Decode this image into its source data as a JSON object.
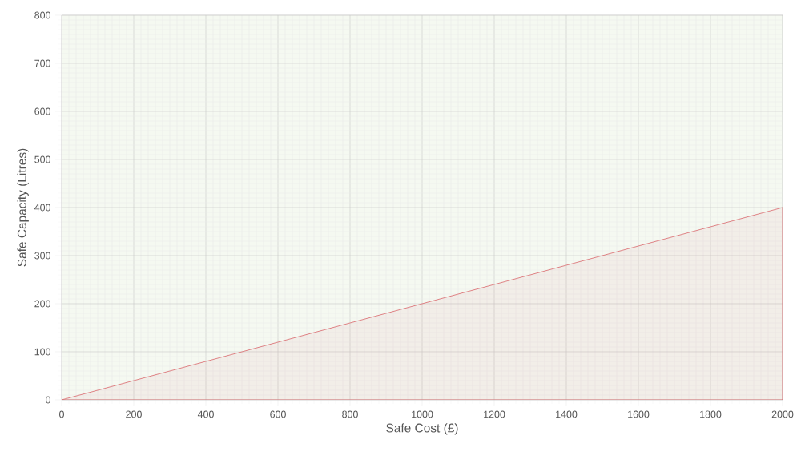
{
  "chart_data": {
    "type": "area",
    "xlabel": "Safe Cost (£)",
    "ylabel": "Safe Capacity (Litres)",
    "x": [
      0,
      2000
    ],
    "series": [
      {
        "color": "#d9666b",
        "values": [
          0,
          400
        ]
      }
    ],
    "bands": [
      {
        "axis": "y",
        "from": 0,
        "to": 800,
        "color": "#f5f9f1"
      }
    ],
    "xlim": [
      0,
      2000
    ],
    "ylim": [
      0,
      800
    ],
    "xticks": [
      0,
      200,
      400,
      600,
      800,
      1000,
      1200,
      1400,
      1600,
      1800,
      2000
    ],
    "yticks": [
      0,
      100,
      200,
      300,
      400,
      500,
      600,
      700,
      800
    ],
    "grid": true
  }
}
